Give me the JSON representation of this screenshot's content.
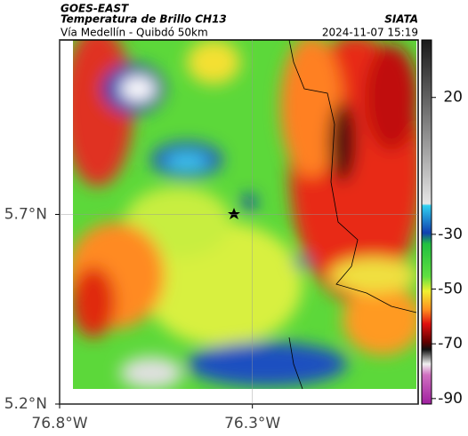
{
  "header": {
    "source": "GOES-EAST",
    "title": "Temperatura de Brillo CH13",
    "org": "SIATA",
    "subtitle": "Vía Medellín - Quibdó 50km",
    "timestamp": "2024-11-07 15:19"
  },
  "map": {
    "lonlim": [
      -76.8,
      -75.87
    ],
    "latlim": [
      5.2,
      6.16
    ],
    "lonticks": [
      {
        "value": -76.8,
        "label": "76.8°W"
      },
      {
        "value": -76.3,
        "label": "76.3°W"
      }
    ],
    "latticks": [
      {
        "value": 5.2,
        "label": "5.2°N"
      },
      {
        "value": 5.7,
        "label": "5.7°N"
      }
    ],
    "grid": true
  },
  "colorbar": {
    "lim": [
      -92,
      41
    ],
    "ticks": [
      20,
      -30,
      -50,
      -70,
      -90
    ]
  }
}
